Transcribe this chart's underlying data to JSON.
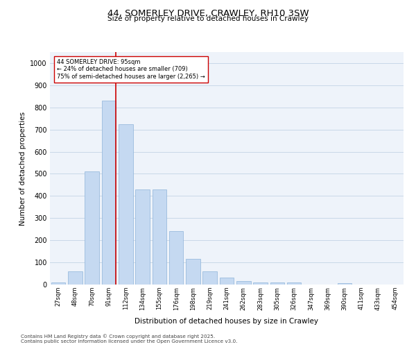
{
  "title": "44, SOMERLEY DRIVE, CRAWLEY, RH10 3SW",
  "subtitle": "Size of property relative to detached houses in Crawley",
  "xlabel": "Distribution of detached houses by size in Crawley",
  "ylabel": "Number of detached properties",
  "categories": [
    "27sqm",
    "48sqm",
    "70sqm",
    "91sqm",
    "112sqm",
    "134sqm",
    "155sqm",
    "176sqm",
    "198sqm",
    "219sqm",
    "241sqm",
    "262sqm",
    "283sqm",
    "305sqm",
    "326sqm",
    "347sqm",
    "369sqm",
    "390sqm",
    "411sqm",
    "433sqm",
    "454sqm"
  ],
  "values": [
    10,
    60,
    510,
    830,
    725,
    430,
    430,
    240,
    115,
    60,
    30,
    15,
    10,
    10,
    8,
    0,
    0,
    5,
    0,
    0,
    0
  ],
  "bar_color": "#c5d9f1",
  "bar_edge_color": "#8db4d9",
  "grid_color": "#c8d8e8",
  "background_color": "#eef3fa",
  "red_line_color": "#cc0000",
  "annotation_text": "44 SOMERLEY DRIVE: 95sqm\n← 24% of detached houses are smaller (709)\n75% of semi-detached houses are larger (2,265) →",
  "annotation_box_color": "#ffffff",
  "annotation_box_edge": "#cc0000",
  "ylim": [
    0,
    1050
  ],
  "yticks": [
    0,
    100,
    200,
    300,
    400,
    500,
    600,
    700,
    800,
    900,
    1000
  ],
  "footer1": "Contains HM Land Registry data © Crown copyright and database right 2025.",
  "footer2": "Contains public sector information licensed under the Open Government Licence v3.0."
}
